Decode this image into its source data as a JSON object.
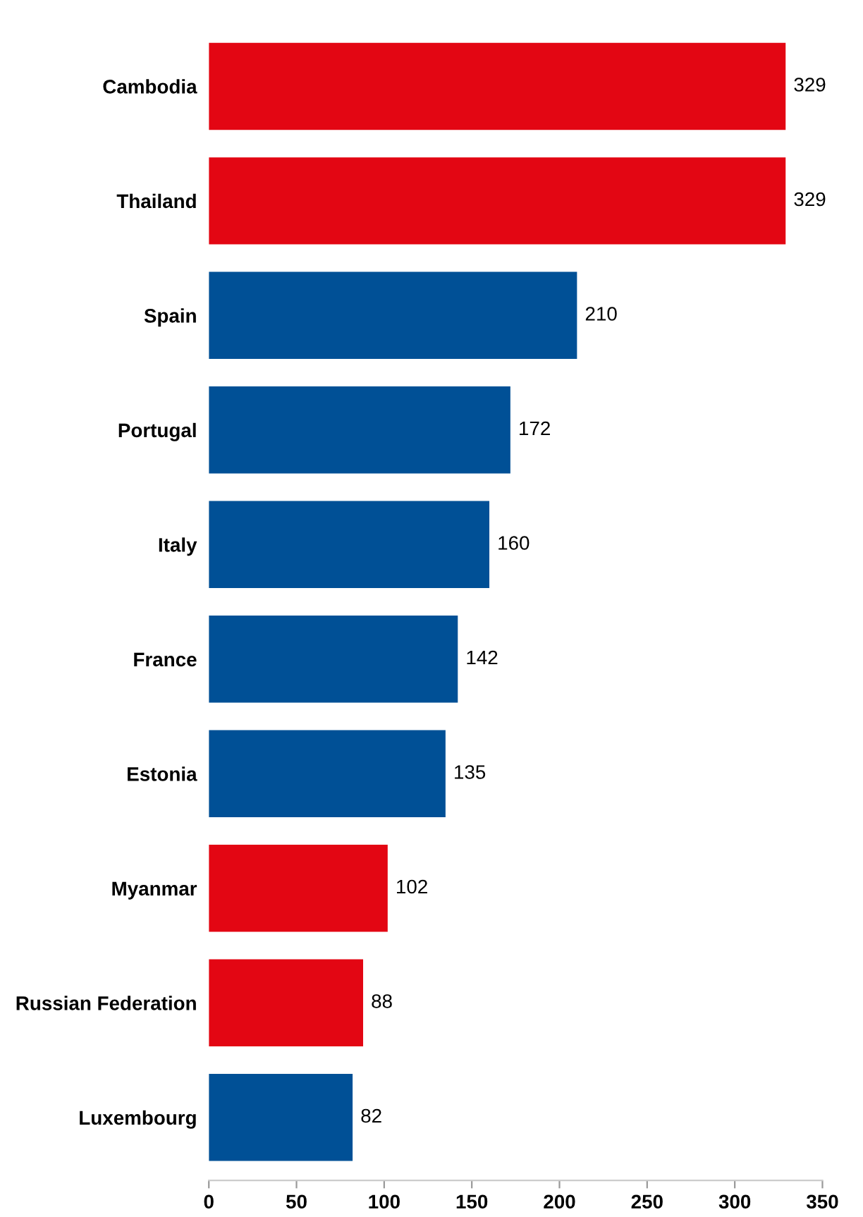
{
  "chart_data": {
    "type": "bar",
    "orientation": "horizontal",
    "categories": [
      "Cambodia",
      "Thailand",
      "Spain",
      "Portugal",
      "Italy",
      "France",
      "Estonia",
      "Myanmar",
      "Russian Federation",
      "Luxembourg"
    ],
    "values": [
      329,
      329,
      210,
      172,
      160,
      142,
      135,
      102,
      88,
      82
    ],
    "colors": [
      "#e30613",
      "#e30613",
      "#005096",
      "#005096",
      "#005096",
      "#005096",
      "#005096",
      "#e30613",
      "#e30613",
      "#005096"
    ],
    "xlim": [
      0,
      350
    ],
    "xticks": [
      0,
      50,
      100,
      150,
      200,
      250,
      300,
      350
    ],
    "data_labels": true,
    "grid": false,
    "legend": false
  }
}
